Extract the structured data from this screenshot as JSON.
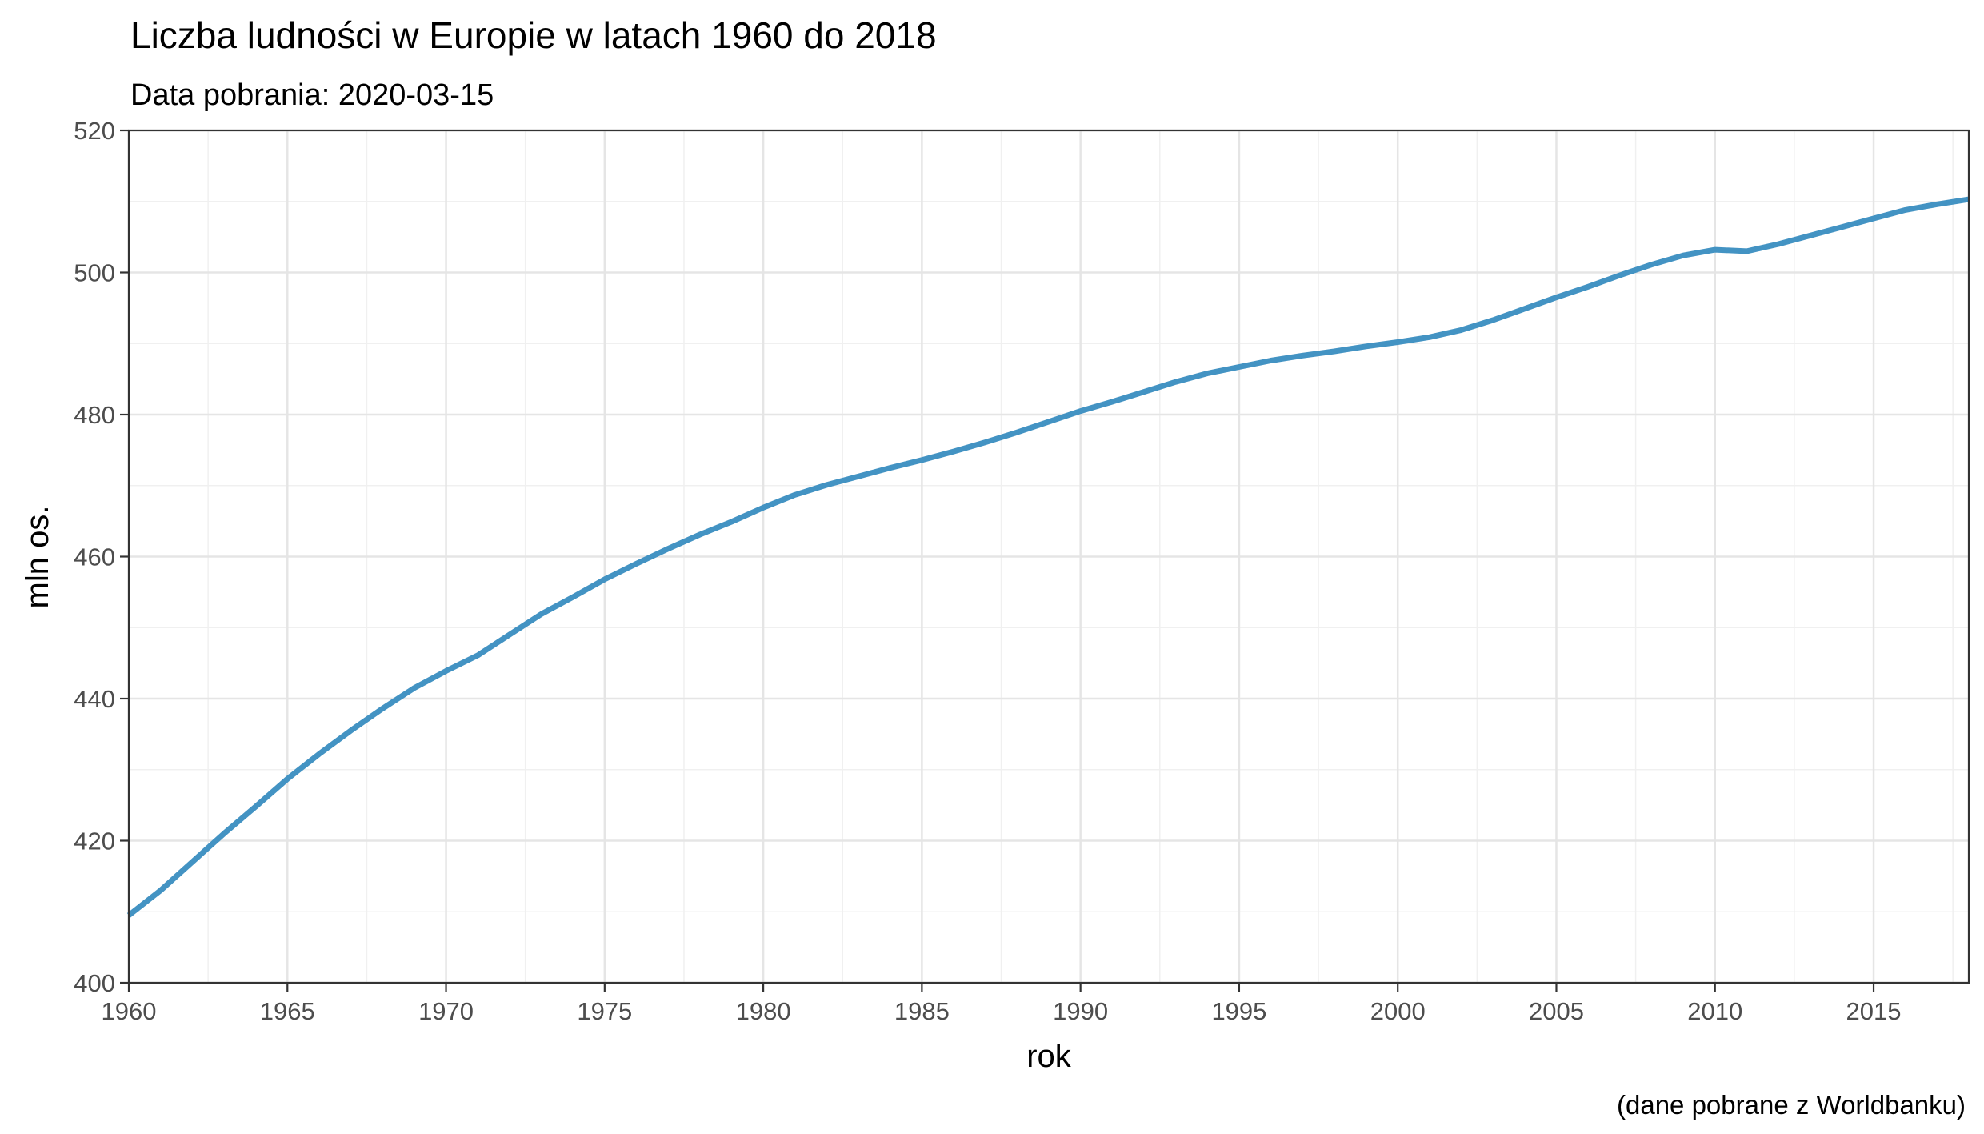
{
  "chart_data": {
    "type": "line",
    "title": "Liczba ludności w Europie w latach 1960 do  2018",
    "subtitle": "Data pobrania: 2020-03-15",
    "caption": "(dane pobrane z Worldbanku)",
    "xlabel": "rok",
    "ylabel": "mln os.",
    "xlim": [
      1960,
      2018
    ],
    "ylim": [
      400,
      520
    ],
    "x_ticks": [
      1960,
      1965,
      1970,
      1975,
      1980,
      1985,
      1990,
      1995,
      2000,
      2005,
      2010,
      2015
    ],
    "x_tick_labels": [
      "1960",
      "1965",
      "1970",
      "1975",
      "1980",
      "1985",
      "1990",
      "1995",
      "2000",
      "2005",
      "2010",
      "2015"
    ],
    "y_ticks": [
      400,
      420,
      440,
      460,
      480,
      500,
      520
    ],
    "y_tick_labels": [
      "400",
      "420",
      "440",
      "460",
      "480",
      "500",
      "520"
    ],
    "grid": true,
    "line_color": "#4393c3",
    "series": [
      {
        "x": [
          1960,
          1961,
          1962,
          1963,
          1964,
          1965,
          1966,
          1967,
          1968,
          1969,
          1970,
          1971,
          1972,
          1973,
          1974,
          1975,
          1976,
          1977,
          1978,
          1979,
          1980,
          1981,
          1982,
          1983,
          1984,
          1985,
          1986,
          1987,
          1988,
          1989,
          1990,
          1991,
          1992,
          1993,
          1994,
          1995,
          1996,
          1997,
          1998,
          1999,
          2000,
          2001,
          2002,
          2003,
          2004,
          2005,
          2006,
          2007,
          2008,
          2009,
          2010,
          2011,
          2012,
          2013,
          2014,
          2015,
          2016,
          2017,
          2018
        ],
        "values": [
          409.5,
          413.0,
          417.0,
          421.0,
          424.8,
          428.7,
          432.2,
          435.5,
          438.6,
          441.5,
          443.9,
          446.1,
          449.0,
          451.9,
          454.3,
          456.8,
          459.0,
          461.1,
          463.1,
          464.9,
          466.9,
          468.7,
          470.1,
          471.3,
          472.5,
          473.6,
          474.8,
          476.1,
          477.5,
          479.0,
          480.5,
          481.8,
          483.2,
          484.6,
          485.8,
          486.7,
          487.6,
          488.3,
          488.9,
          489.6,
          490.2,
          490.9,
          491.9,
          493.3,
          494.9,
          496.5,
          498.0,
          499.6,
          501.1,
          502.4,
          503.2,
          503.0,
          504.0,
          505.2,
          506.4,
          507.6,
          508.8,
          509.6,
          510.3
        ]
      }
    ]
  }
}
